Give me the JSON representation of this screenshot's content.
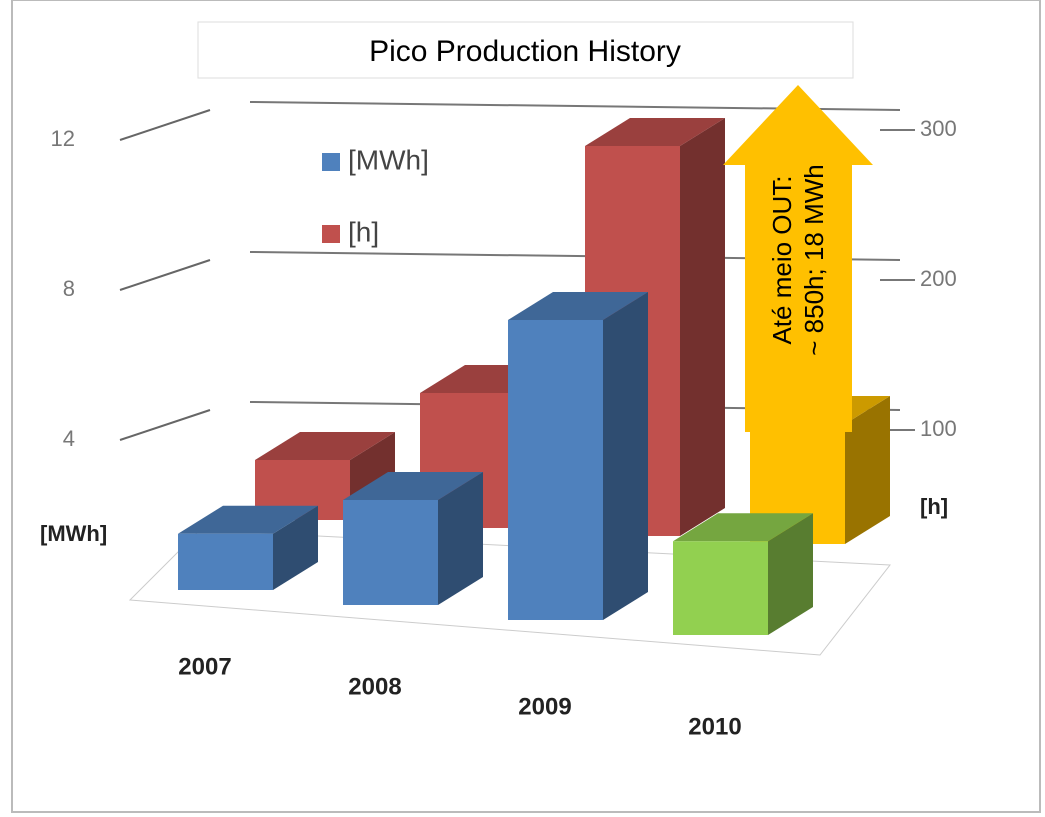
{
  "chart_data": {
    "type": "bar3d",
    "title": "Pico Production History",
    "categories": [
      "2007",
      "2008",
      "2009",
      "2010"
    ],
    "series": [
      {
        "name": "[MWh]",
        "color": "#4f81bd",
        "colors": [
          "#4f81bd",
          "#4f81bd",
          "#4f81bd",
          "#92d050"
        ],
        "values": [
          1.5,
          2.8,
          8,
          2.5
        ]
      },
      {
        "name": "[h]",
        "color": "#c0504d",
        "colors": [
          "#c0504d",
          "#c0504d",
          "#c0504d",
          "#ffc000"
        ],
        "values": [
          40,
          90,
          260,
          80
        ],
        "axis": "y2"
      }
    ],
    "ylabel": "[MWh]",
    "y2label": "[h]",
    "ylim": [
      0,
      12
    ],
    "yticks": [
      4,
      8,
      12
    ],
    "y2lim": [
      0,
      300
    ],
    "y2ticks": [
      100,
      200,
      300
    ],
    "grid": true,
    "legend": "upper left",
    "annotation": [
      "Até meio OUT:",
      "~ 850h; 18 MWh"
    ]
  }
}
